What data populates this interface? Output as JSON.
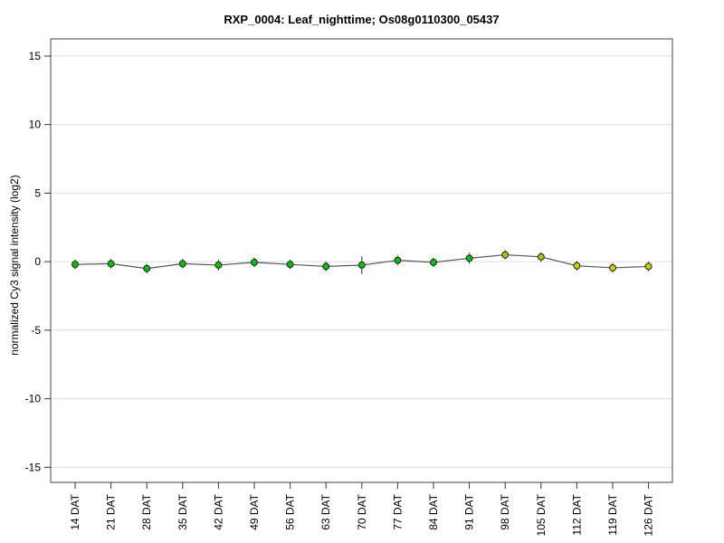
{
  "page": {
    "background": "#ffffff"
  },
  "chart_data": {
    "type": "line",
    "title": "RXP_0004: Leaf_nighttime; Os08g0110300_05437",
    "xlabel": "",
    "ylabel": "normalized Cy3 signal intensity (log2)",
    "ylim": [
      -16.1,
      16.25
    ],
    "yticks": [
      -15,
      -10,
      -5,
      0,
      5,
      10,
      15
    ],
    "grid": true,
    "legend": "none",
    "categories": [
      "14 DAT",
      "21 DAT",
      "28 DAT",
      "35 DAT",
      "42 DAT",
      "49 DAT",
      "56 DAT",
      "63 DAT",
      "70 DAT",
      "77 DAT",
      "84 DAT",
      "91 DAT",
      "98 DAT",
      "105 DAT",
      "112 DAT",
      "119 DAT",
      "126 DAT"
    ],
    "series": [
      {
        "name": "normalized Cy3 signal intensity",
        "values": [
          -0.2,
          -0.15,
          -0.5,
          -0.15,
          -0.25,
          -0.05,
          -0.2,
          -0.35,
          -0.25,
          0.1,
          -0.05,
          0.25,
          0.5,
          0.35,
          -0.3,
          -0.45,
          -0.35
        ],
        "errors": [
          0.35,
          0.35,
          0.35,
          0.35,
          0.4,
          0.35,
          0.35,
          0.35,
          0.65,
          0.35,
          0.35,
          0.4,
          0.35,
          0.35,
          0.35,
          0.35,
          0.35
        ],
        "point_colors": [
          "#00C000",
          "#00C000",
          "#00C000",
          "#00C000",
          "#00C000",
          "#00C000",
          "#00C000",
          "#00C000",
          "#00C000",
          "#00C000",
          "#00C000",
          "#00C000",
          "#99CC00",
          "#99CC00",
          "#CCCC00",
          "#CCCC00",
          "#CCCC00"
        ]
      }
    ],
    "colors": {
      "line": "#555555",
      "grid": "#DCDCDC",
      "axis": "#444444",
      "tick": "#333333",
      "marker_stroke": "#222222",
      "error_bar": "#333333"
    }
  }
}
